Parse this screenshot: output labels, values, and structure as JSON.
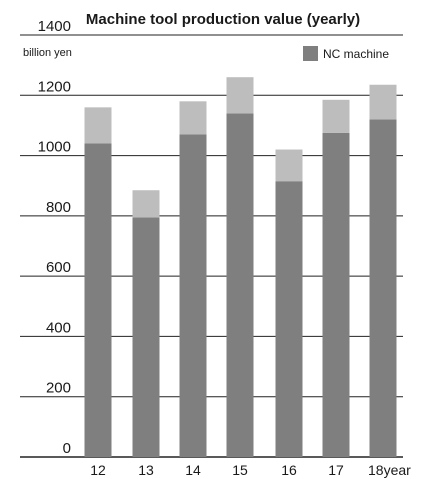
{
  "chart_data": {
    "type": "bar",
    "stacked": true,
    "title": "Machine tool production value (yearly)",
    "unit_label": "billion yen",
    "categories": [
      "12",
      "13",
      "14",
      "15",
      "16",
      "17",
      "18"
    ],
    "x_suffix": "year",
    "series": [
      {
        "name": "NC machine",
        "values": [
          1040,
          795,
          1070,
          1140,
          915,
          1075,
          1120
        ],
        "color": "#7f7f7f"
      },
      {
        "values": [
          120,
          90,
          110,
          120,
          105,
          110,
          115
        ],
        "color": "#bdbdbd"
      }
    ],
    "ylim": [
      0,
      1400
    ],
    "yticks": [
      0,
      200,
      400,
      600,
      800,
      1000,
      1200,
      1400
    ],
    "grid": true,
    "legend": "top-right"
  }
}
